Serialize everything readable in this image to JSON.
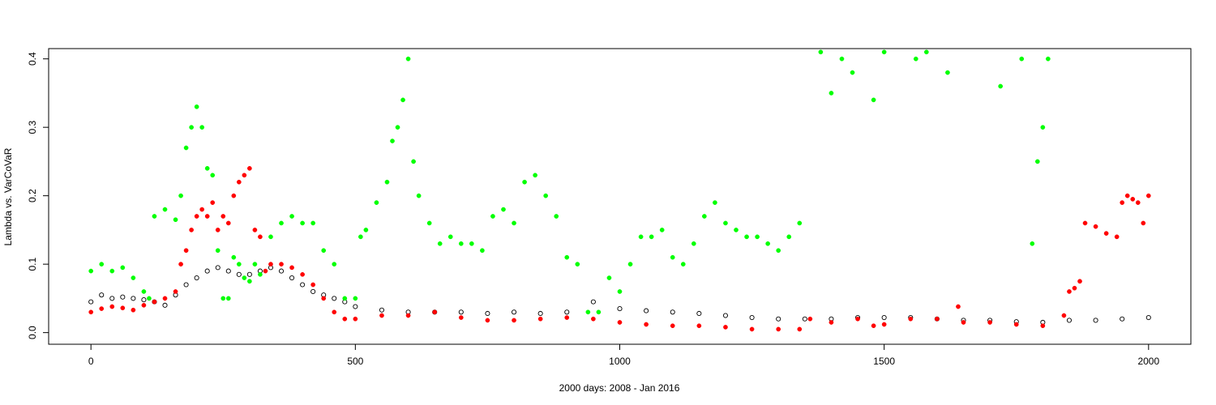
{
  "chart_data": {
    "type": "scatter",
    "title": "",
    "xlabel": "2000 days: 2008 - Jan 2016",
    "ylabel": "Lambda vs. VarCoVaR",
    "xlim": [
      -80,
      2080
    ],
    "ylim": [
      -0.017,
      0.415
    ],
    "x_ticks": [
      0,
      500,
      1000,
      1500,
      2000
    ],
    "y_ticks": [
      0.0,
      0.1,
      0.2,
      0.3,
      0.4
    ],
    "x_tick_labels": [
      "0",
      "500",
      "1000",
      "1500",
      "2000"
    ],
    "y_tick_labels": [
      "0.0",
      "0.1",
      "0.2",
      "0.3",
      "0.4"
    ],
    "legend": "none",
    "grid": false,
    "series": [
      {
        "marker": "open-circle",
        "color": "#000000",
        "x": [
          0,
          20,
          40,
          60,
          80,
          100,
          120,
          140,
          160,
          180,
          200,
          220,
          240,
          260,
          280,
          300,
          320,
          340,
          360,
          380,
          400,
          420,
          440,
          460,
          480,
          500,
          550,
          600,
          650,
          700,
          750,
          800,
          850,
          900,
          950,
          1000,
          1050,
          1100,
          1150,
          1200,
          1250,
          1300,
          1350,
          1400,
          1450,
          1500,
          1550,
          1600,
          1650,
          1700,
          1750,
          1800,
          1850,
          1900,
          1950,
          2000
        ],
        "y": [
          0.045,
          0.055,
          0.05,
          0.052,
          0.05,
          0.048,
          0.045,
          0.04,
          0.055,
          0.07,
          0.08,
          0.09,
          0.095,
          0.09,
          0.085,
          0.085,
          0.09,
          0.095,
          0.09,
          0.08,
          0.07,
          0.06,
          0.055,
          0.05,
          0.045,
          0.038,
          0.033,
          0.03,
          0.03,
          0.03,
          0.028,
          0.03,
          0.028,
          0.03,
          0.045,
          0.035,
          0.032,
          0.03,
          0.028,
          0.025,
          0.022,
          0.02,
          0.02,
          0.02,
          0.022,
          0.022,
          0.022,
          0.02,
          0.018,
          0.018,
          0.016,
          0.015,
          0.018,
          0.018,
          0.02,
          0.022
        ]
      },
      {
        "marker": "filled-circle",
        "color": "#ff0000",
        "x": [
          0,
          20,
          40,
          60,
          80,
          100,
          120,
          140,
          160,
          170,
          180,
          190,
          200,
          210,
          220,
          230,
          240,
          250,
          260,
          270,
          280,
          290,
          300,
          310,
          320,
          330,
          340,
          360,
          380,
          400,
          420,
          440,
          460,
          480,
          500,
          550,
          600,
          650,
          700,
          750,
          800,
          850,
          900,
          950,
          1000,
          1050,
          1100,
          1150,
          1200,
          1250,
          1300,
          1340,
          1360,
          1400,
          1450,
          1480,
          1500,
          1550,
          1600,
          1640,
          1650,
          1700,
          1750,
          1800,
          1840,
          1850,
          1860,
          1870,
          1880,
          1900,
          1920,
          1940,
          1950,
          1960,
          1970,
          1980,
          1990,
          2000
        ],
        "y": [
          0.03,
          0.035,
          0.038,
          0.036,
          0.033,
          0.04,
          0.045,
          0.05,
          0.06,
          0.1,
          0.12,
          0.15,
          0.17,
          0.18,
          0.17,
          0.19,
          0.15,
          0.17,
          0.16,
          0.2,
          0.22,
          0.23,
          0.24,
          0.15,
          0.14,
          0.09,
          0.1,
          0.1,
          0.095,
          0.085,
          0.07,
          0.05,
          0.03,
          0.02,
          0.02,
          0.025,
          0.025,
          0.03,
          0.022,
          0.018,
          0.018,
          0.02,
          0.022,
          0.02,
          0.015,
          0.012,
          0.01,
          0.01,
          0.008,
          0.005,
          0.005,
          0.005,
          0.02,
          0.015,
          0.02,
          0.01,
          0.012,
          0.02,
          0.02,
          0.038,
          0.015,
          0.015,
          0.012,
          0.01,
          0.025,
          0.06,
          0.065,
          0.075,
          0.16,
          0.155,
          0.145,
          0.14,
          0.19,
          0.2,
          0.195,
          0.19,
          0.16,
          0.2
        ]
      },
      {
        "marker": "filled-circle",
        "color": "#00ff00",
        "x": [
          0,
          20,
          40,
          60,
          80,
          100,
          110,
          120,
          140,
          160,
          170,
          180,
          190,
          200,
          210,
          220,
          230,
          240,
          250,
          260,
          270,
          280,
          290,
          300,
          310,
          320,
          340,
          360,
          380,
          400,
          420,
          440,
          460,
          480,
          500,
          510,
          520,
          540,
          560,
          570,
          580,
          590,
          600,
          610,
          620,
          640,
          660,
          680,
          700,
          720,
          740,
          760,
          780,
          800,
          820,
          840,
          860,
          880,
          900,
          920,
          940,
          960,
          980,
          1000,
          1020,
          1040,
          1060,
          1080,
          1100,
          1120,
          1140,
          1160,
          1180,
          1200,
          1220,
          1240,
          1260,
          1280,
          1300,
          1320,
          1340,
          1380,
          1400,
          1420,
          1440,
          1480,
          1500,
          1560,
          1580,
          1620,
          1720,
          1760,
          1780,
          1790,
          1800,
          1810
        ],
        "y": [
          0.09,
          0.1,
          0.09,
          0.095,
          0.08,
          0.06,
          0.05,
          0.17,
          0.18,
          0.165,
          0.2,
          0.27,
          0.3,
          0.33,
          0.3,
          0.24,
          0.23,
          0.12,
          0.05,
          0.05,
          0.11,
          0.1,
          0.08,
          0.075,
          0.1,
          0.085,
          0.14,
          0.16,
          0.17,
          0.16,
          0.16,
          0.12,
          0.1,
          0.05,
          0.05,
          0.14,
          0.15,
          0.19,
          0.22,
          0.28,
          0.3,
          0.34,
          0.4,
          0.25,
          0.2,
          0.16,
          0.13,
          0.14,
          0.13,
          0.13,
          0.12,
          0.17,
          0.18,
          0.16,
          0.22,
          0.23,
          0.2,
          0.17,
          0.11,
          0.1,
          0.03,
          0.03,
          0.08,
          0.06,
          0.1,
          0.14,
          0.14,
          0.15,
          0.11,
          0.1,
          0.13,
          0.17,
          0.19,
          0.16,
          0.15,
          0.14,
          0.14,
          0.13,
          0.12,
          0.14,
          0.16,
          0.41,
          0.35,
          0.4,
          0.38,
          0.34,
          0.41,
          0.4,
          0.41,
          0.38,
          0.36,
          0.4,
          0.13,
          0.25,
          0.3,
          0.4
        ]
      }
    ]
  }
}
